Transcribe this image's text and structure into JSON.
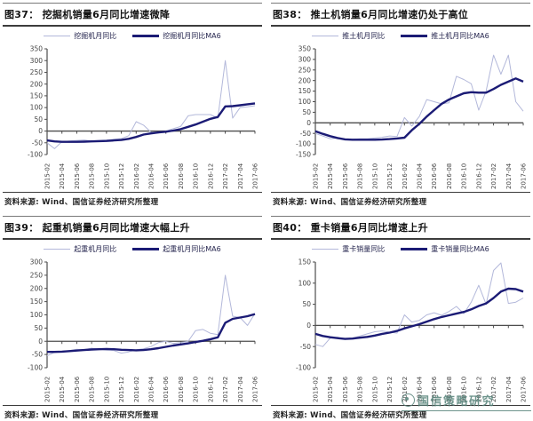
{
  "colors": {
    "light_line": "#b3b8da",
    "dark_line": "#1b1b75",
    "axis": "#4d4d4d",
    "tick_text": "#444444",
    "watermark": "#57837a"
  },
  "watermark": {
    "text": "国信策略研究"
  },
  "x_months": [
    "2015-02",
    "2015-03",
    "2015-04",
    "2015-05",
    "2015-06",
    "2015-07",
    "2015-08",
    "2015-09",
    "2015-10",
    "2015-11",
    "2015-12",
    "2016-01",
    "2016-02",
    "2016-03",
    "2016-04",
    "2016-05",
    "2016-06",
    "2016-07",
    "2016-08",
    "2016-09",
    "2016-10",
    "2016-11",
    "2016-12",
    "2017-01",
    "2017-02",
    "2017-03",
    "2017-04",
    "2017-05",
    "2017-06"
  ],
  "x_tick_step": 2,
  "chart_data": [
    {
      "type": "line",
      "title": "图37： 挖掘机销量6月同比增速微降",
      "legend": [
        "挖掘机月同比",
        "挖掘机月同比MA6"
      ],
      "ylim": [
        -100,
        350
      ],
      "yticks": [
        350,
        300,
        250,
        200,
        150,
        100,
        50,
        0,
        -50,
        -100
      ],
      "series": [
        {
          "name": "挖掘机月同比",
          "values": [
            -50,
            -75,
            -45,
            -42,
            -40,
            -38,
            -42,
            -40,
            -38,
            -35,
            -32,
            -20,
            40,
            25,
            -5,
            -8,
            0,
            10,
            20,
            65,
            70,
            70,
            70,
            55,
            300,
            55,
            100,
            103,
            108
          ]
        },
        {
          "name": "挖掘机月同比MA6",
          "values": [
            -40,
            -44,
            -46,
            -46,
            -46,
            -45,
            -44,
            -43,
            -42,
            -40,
            -38,
            -33,
            -25,
            -15,
            -10,
            -6,
            -3,
            2,
            8,
            18,
            28,
            40,
            52,
            60,
            105,
            106,
            110,
            114,
            118
          ]
        }
      ],
      "source": "资料来源: Wind、国信证券经济研究所整理"
    },
    {
      "type": "line",
      "title": "图38： 推土机销量6月同比增速仍处于高位",
      "legend": [
        "推土机月同比",
        "推土机月同比MA6"
      ],
      "ylim": [
        -150,
        350
      ],
      "yticks": [
        350,
        300,
        250,
        200,
        150,
        100,
        50,
        0,
        -50,
        -100,
        -150
      ],
      "series": [
        {
          "name": "推土机月同比",
          "values": [
            -50,
            -62,
            -75,
            -72,
            -80,
            -78,
            -75,
            -75,
            -72,
            -68,
            -62,
            -65,
            25,
            -15,
            30,
            110,
            100,
            90,
            95,
            220,
            205,
            185,
            60,
            150,
            320,
            230,
            320,
            100,
            55
          ]
        },
        {
          "name": "推土机月同比MA6",
          "values": [
            -40,
            -52,
            -63,
            -72,
            -78,
            -80,
            -80,
            -80,
            -80,
            -79,
            -77,
            -74,
            -70,
            -35,
            -5,
            30,
            60,
            90,
            110,
            125,
            140,
            145,
            143,
            143,
            160,
            180,
            195,
            210,
            195
          ]
        }
      ],
      "source": "资料来源: Wind、国信证券经济研究所整理"
    },
    {
      "type": "line",
      "title": "图39： 起重机销量6月同比增速大幅上升",
      "legend": [
        "起重机月同比",
        "起重机月同比MA6"
      ],
      "ylim": [
        -100,
        300
      ],
      "yticks": [
        300,
        250,
        200,
        150,
        100,
        50,
        0,
        -50,
        -100
      ],
      "series": [
        {
          "name": "起重机月同比",
          "values": [
            -55,
            -42,
            -38,
            -35,
            -30,
            -32,
            -26,
            -30,
            -33,
            -35,
            -45,
            -40,
            -32,
            -28,
            -20,
            -5,
            0,
            -8,
            -5,
            0,
            40,
            45,
            30,
            25,
            250,
            95,
            90,
            60,
            105
          ]
        },
        {
          "name": "起重机月同比MA6",
          "values": [
            -40,
            -40,
            -39,
            -37,
            -35,
            -33,
            -31,
            -30,
            -29,
            -30,
            -32,
            -33,
            -34,
            -33,
            -30,
            -26,
            -21,
            -16,
            -12,
            -8,
            -3,
            2,
            8,
            15,
            70,
            85,
            90,
            95,
            103
          ]
        }
      ],
      "source": "资料来源: Wind、国信证券经济研究所整理"
    },
    {
      "type": "line",
      "title": "图40： 重卡销量6月同比增速上升",
      "legend": [
        "重卡销量同比",
        "重卡销量同比MA6"
      ],
      "ylim": [
        -100,
        150
      ],
      "yticks": [
        150,
        100,
        50,
        0,
        -50,
        -100
      ],
      "series": [
        {
          "name": "重卡销量同比",
          "values": [
            -45,
            -50,
            -30,
            -28,
            -33,
            -30,
            -25,
            -20,
            -15,
            -13,
            -16,
            -18,
            25,
            8,
            12,
            25,
            30,
            24,
            33,
            45,
            28,
            55,
            95,
            50,
            130,
            148,
            52,
            55,
            65
          ]
        },
        {
          "name": "重卡销量同比MA6",
          "values": [
            -20,
            -25,
            -28,
            -30,
            -32,
            -31,
            -29,
            -27,
            -24,
            -20,
            -17,
            -13,
            -7,
            -2,
            3,
            9,
            15,
            20,
            24,
            28,
            32,
            38,
            46,
            52,
            65,
            80,
            87,
            86,
            80
          ]
        }
      ],
      "source": "资料来源: Wind、国信证券经济研究所整理"
    }
  ]
}
